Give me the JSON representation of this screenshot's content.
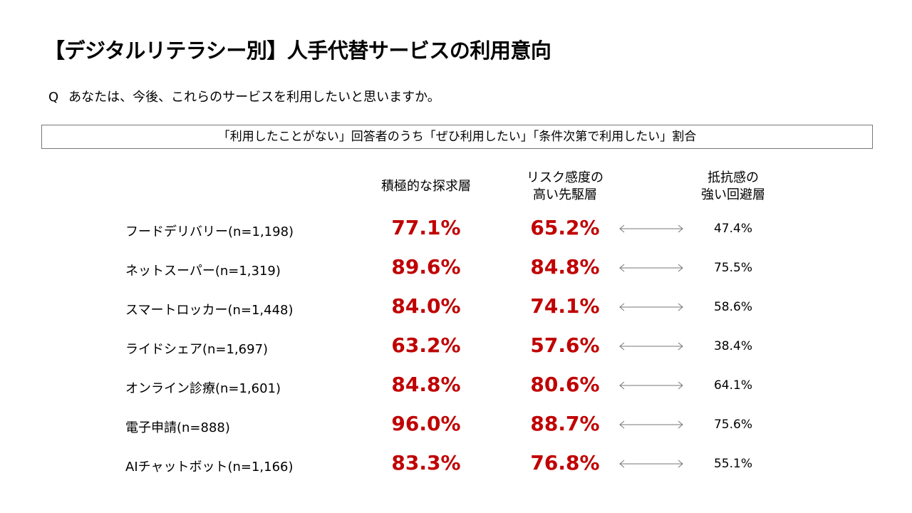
{
  "title": "【デジタルリテラシー別】人手代替サービスの利用意向",
  "question": {
    "marker": "Q",
    "text": "あなたは、今後、これらのサービスを利用したいと思いますか。"
  },
  "box_label": "「利用したことがない」回答者のうち「ぜひ利用したい」「条件次第で利用したい」割合",
  "columns": [
    {
      "line1": "積極的な探求層",
      "line2": ""
    },
    {
      "line1": "リスク感度の",
      "line2": "高い先駆層"
    },
    {
      "line1": "抵抗感の",
      "line2": "強い回避層"
    }
  ],
  "colors": {
    "highlight": "#c00000",
    "arrow": "#777777"
  },
  "rows": [
    {
      "label": "フードデリバリー(n=1,198)",
      "explorer": "77.1%",
      "pioneer": "65.2%",
      "avoider": "47.4%"
    },
    {
      "label": "ネットスーパー(n=1,319)",
      "explorer": "89.6%",
      "pioneer": "84.8%",
      "avoider": "75.5%"
    },
    {
      "label": "スマートロッカー(n=1,448)",
      "explorer": "84.0%",
      "pioneer": "74.1%",
      "avoider": "58.6%"
    },
    {
      "label": "ライドシェア(n=1,697)",
      "explorer": "63.2%",
      "pioneer": "57.6%",
      "avoider": "38.4%"
    },
    {
      "label": "オンライン診療(n=1,601)",
      "explorer": "84.8%",
      "pioneer": "80.6%",
      "avoider": "64.1%"
    },
    {
      "label": "電子申請(n=888)",
      "explorer": "96.0%",
      "pioneer": "88.7%",
      "avoider": "75.6%"
    },
    {
      "label": "AIチャットボット(n=1,166)",
      "explorer": "83.3%",
      "pioneer": "76.8%",
      "avoider": "55.1%"
    }
  ]
}
